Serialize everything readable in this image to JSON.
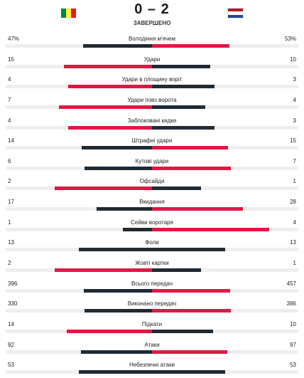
{
  "match": {
    "score": "0 – 2",
    "status": "ЗАВЕРШЕНО",
    "home_flag_colors": [
      "#00853f",
      "#fdef42",
      "#e31b23"
    ],
    "away_flag_colors": [
      "#ae1c28",
      "#ffffff",
      "#21468b"
    ]
  },
  "colors": {
    "leading": "#e01744",
    "trailing": "#1f2a33",
    "track": "#eeeeee"
  },
  "stats": [
    {
      "label": "Володіння м'ячем",
      "home": "47%",
      "away": "53%",
      "home_val": 47,
      "away_val": 53
    },
    {
      "label": "Удари",
      "home": "15",
      "away": "10",
      "home_val": 15,
      "away_val": 10
    },
    {
      "label": "Удари в площину воріт",
      "home": "4",
      "away": "3",
      "home_val": 4,
      "away_val": 3
    },
    {
      "label": "Удари повз ворота",
      "home": "7",
      "away": "4",
      "home_val": 7,
      "away_val": 4
    },
    {
      "label": "Заблоковані кидки",
      "home": "4",
      "away": "3",
      "home_val": 4,
      "away_val": 3
    },
    {
      "label": "Штрафні удари",
      "home": "14",
      "away": "15",
      "home_val": 14,
      "away_val": 15
    },
    {
      "label": "Кутові удари",
      "home": "6",
      "away": "7",
      "home_val": 6,
      "away_val": 7
    },
    {
      "label": "Офсайди",
      "home": "2",
      "away": "1",
      "home_val": 2,
      "away_val": 1
    },
    {
      "label": "Вкидання",
      "home": "17",
      "away": "28",
      "home_val": 17,
      "away_val": 28
    },
    {
      "label": "Сейви воротаря",
      "home": "1",
      "away": "4",
      "home_val": 1,
      "away_val": 4
    },
    {
      "label": "Фоли",
      "home": "13",
      "away": "13",
      "home_val": 13,
      "away_val": 13
    },
    {
      "label": "Жовті картки",
      "home": "2",
      "away": "1",
      "home_val": 2,
      "away_val": 1
    },
    {
      "label": "Всього передач",
      "home": "396",
      "away": "457",
      "home_val": 396,
      "away_val": 457
    },
    {
      "label": "Виконано передач",
      "home": "330",
      "away": "386",
      "home_val": 330,
      "away_val": 386
    },
    {
      "label": "Підкати",
      "home": "14",
      "away": "10",
      "home_val": 14,
      "away_val": 10
    },
    {
      "label": "Атаки",
      "home": "92",
      "away": "97",
      "home_val": 92,
      "away_val": 97
    },
    {
      "label": "Небезпечні атаки",
      "home": "53",
      "away": "53",
      "home_val": 53,
      "away_val": 53
    }
  ]
}
